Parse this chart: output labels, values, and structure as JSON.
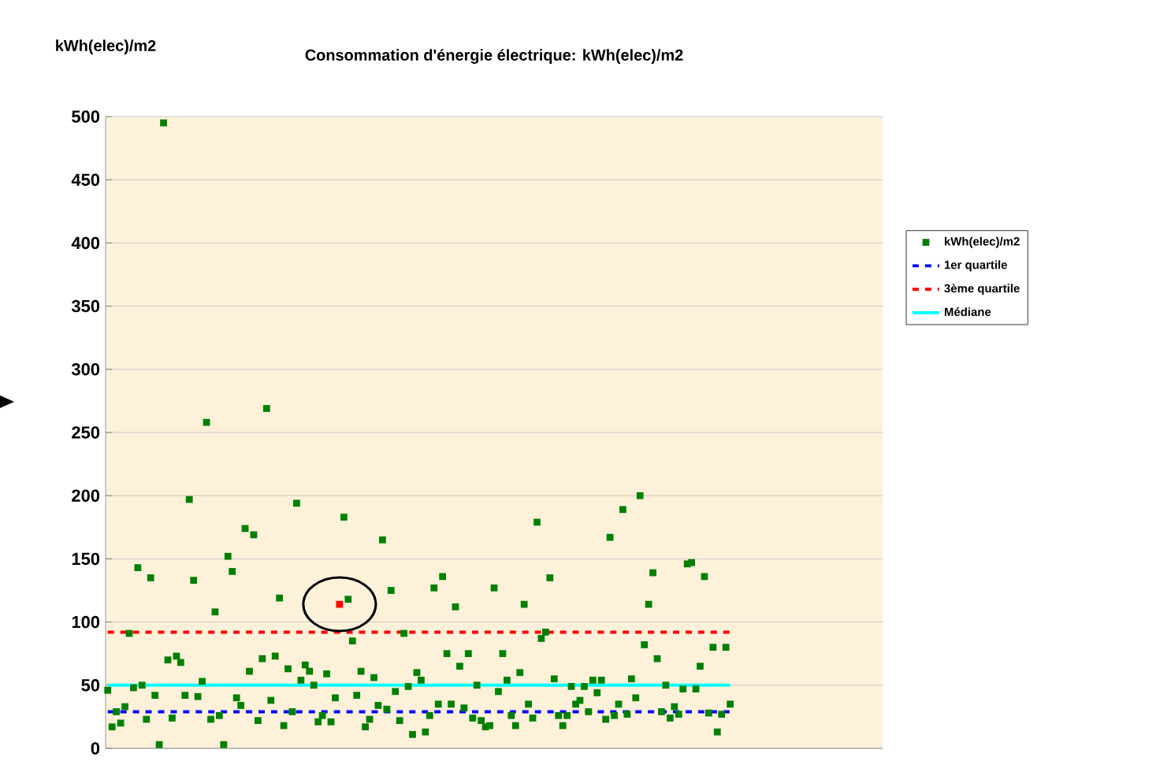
{
  "chart_data": {
    "type": "scatter",
    "title": "Consommation d'énergie électrique: kWh(elec)/m2",
    "ylabel": "kWh(elec)/m2",
    "categories": [
      null,
      null,
      null,
      null,
      null,
      null,
      null,
      null,
      null,
      null,
      null,
      null,
      null,
      null,
      null,
      null,
      null,
      null,
      null,
      null,
      null,
      null,
      null,
      null,
      null,
      null,
      null,
      null,
      null,
      null,
      null,
      null,
      null,
      null,
      null,
      null,
      null,
      null,
      null,
      null,
      null,
      null,
      null,
      null,
      null,
      null,
      null,
      null,
      null,
      null,
      null,
      null,
      null,
      null,
      null,
      null,
      null,
      null,
      null,
      null,
      null,
      null,
      null,
      null,
      null,
      null,
      null,
      null,
      null,
      null,
      null,
      null,
      null,
      null,
      null,
      null,
      null,
      null,
      null,
      null,
      null,
      null,
      null,
      null,
      null,
      null,
      null,
      null,
      null,
      null,
      null,
      null,
      null,
      null,
      null,
      null,
      null,
      null,
      null,
      null,
      null,
      null,
      null,
      null,
      null,
      null,
      null,
      null,
      null,
      null,
      null,
      null,
      null,
      null,
      null,
      null,
      null,
      null,
      null,
      null,
      null,
      null,
      null,
      null,
      null,
      null,
      null,
      null,
      null,
      null,
      null,
      null,
      null,
      null,
      null,
      null,
      null,
      null,
      null,
      null,
      null,
      null,
      null,
      null,
      null,
      null,
      null,
      null,
      null,
      null,
      null,
      null,
      null,
      null,
      null,
      null,
      null,
      null,
      null,
      null,
      null,
      null,
      null,
      null,
      null,
      null,
      null,
      null,
      null,
      null,
      null,
      null,
      null,
      null,
      null,
      null,
      null,
      null,
      null,
      null,
      null
    ],
    "ylim": [
      0,
      500
    ],
    "yticks": [
      0,
      50,
      100,
      150,
      200,
      250,
      300,
      350,
      400,
      450,
      500
    ],
    "grid": "y",
    "legend": "right",
    "tick_labels": "y",
    "marker": "square",
    "series": [
      {
        "name": "kWh(elec)/m2",
        "colors": [
          "#008000",
          "#008000",
          "#008000",
          "#008000",
          "#008000",
          "#008000",
          "#008000",
          "#008000",
          "#008000",
          "#008000",
          "#008000",
          "#008000",
          "#008000",
          "#008000",
          "#008000",
          "#008000",
          "#008000",
          "#008000",
          "#008000",
          "#008000",
          "#008000",
          "#008000",
          "#008000",
          "#008000",
          "#008000",
          "#008000",
          "#008000",
          "#008000",
          "#008000",
          "#008000",
          "#008000",
          "#008000",
          "#008000",
          "#008000",
          "#008000",
          "#008000",
          "#008000",
          "#008000",
          "#008000",
          "#008000",
          "#008000",
          "#008000",
          "#008000",
          "#008000",
          "#008000",
          "#008000",
          "#008000",
          "#008000",
          "#008000",
          "#008000",
          "#008000",
          "#008000",
          "#008000",
          "#008000",
          "#ff0000",
          "#008000",
          "#008000",
          "#008000",
          "#008000",
          "#008000",
          "#008000",
          "#008000",
          "#008000",
          "#008000",
          "#008000",
          "#008000",
          "#008000",
          "#008000",
          "#008000",
          "#008000",
          "#008000",
          "#008000",
          "#008000",
          "#008000",
          "#008000",
          "#008000",
          "#008000",
          "#008000",
          "#008000",
          "#008000",
          "#008000",
          "#008000",
          "#008000",
          "#008000",
          "#008000",
          "#008000",
          "#008000",
          "#008000",
          "#008000",
          "#008000",
          "#008000",
          "#008000",
          "#008000",
          "#008000",
          "#008000",
          "#008000",
          "#008000",
          "#008000",
          "#008000",
          "#008000",
          "#008000",
          "#008000",
          "#008000",
          "#008000",
          "#008000",
          "#008000",
          "#008000",
          "#008000",
          "#008000",
          "#008000",
          "#008000",
          "#008000",
          "#008000",
          "#008000",
          "#008000",
          "#008000",
          "#008000",
          "#008000",
          "#008000",
          "#008000",
          "#008000",
          "#008000",
          "#008000",
          "#008000",
          "#008000",
          "#008000",
          "#008000",
          "#008000",
          "#008000",
          "#008000",
          "#008000",
          "#008000",
          "#008000",
          "#008000",
          "#008000",
          "#008000",
          "#008000",
          "#008000",
          "#008000",
          "#008000",
          "#008000",
          "#008000",
          "#008000",
          "#008000",
          "#008000",
          "#008000",
          "#008000",
          "#008000",
          "#008000",
          "#008000",
          "#008000",
          "#008000",
          "#008000",
          "#008000",
          "#008000",
          "#008000",
          "#008000",
          "#008000",
          "#008000",
          "#008000",
          "#008000",
          "#008000",
          "#008000",
          "#008000",
          "#008000",
          "#008000",
          "#008000",
          "#008000",
          "#008000",
          "#008000",
          "#008000",
          "#008000",
          "#008000",
          "#008000",
          "#008000",
          "#008000",
          "#008000",
          "#008000",
          "#008000",
          "#008000",
          "#008000"
        ],
        "values": [
          46,
          17,
          29,
          20,
          33,
          91,
          48,
          143,
          50,
          23,
          135,
          42,
          3,
          495,
          70,
          24,
          73,
          68,
          42,
          197,
          133,
          41,
          53,
          258,
          23,
          108,
          26,
          3,
          152,
          140,
          40,
          34,
          174,
          61,
          169,
          22,
          71,
          269,
          38,
          73,
          119,
          18,
          63,
          29,
          194,
          54,
          66,
          61,
          50,
          21,
          26,
          59,
          21,
          40,
          114,
          183,
          118,
          85,
          42,
          61,
          17,
          23,
          56,
          34,
          165,
          31,
          125,
          45,
          22,
          91,
          49,
          11,
          60,
          54,
          13,
          26,
          127,
          35,
          136,
          75,
          35,
          112,
          65,
          32,
          75,
          24,
          50,
          22,
          17,
          18,
          127,
          45,
          75,
          54,
          26,
          18,
          60,
          114,
          35,
          24,
          179,
          87,
          92,
          135,
          55,
          26,
          18,
          26,
          49,
          35,
          38,
          49,
          29,
          54,
          44,
          54,
          23,
          167,
          26,
          35,
          189,
          27,
          55,
          40,
          200,
          82,
          114,
          139,
          71,
          29,
          50,
          24,
          33,
          27,
          47,
          146,
          147,
          47,
          65,
          136,
          28,
          80,
          13,
          27,
          80,
          35,
          null,
          null,
          null,
          null,
          null,
          null,
          null,
          null,
          null,
          null,
          null,
          null,
          null,
          null,
          null,
          null,
          null,
          null,
          null,
          null,
          null,
          null,
          null,
          null,
          null,
          null,
          null,
          null,
          null,
          null,
          null,
          null,
          null,
          null,
          null
        ]
      }
    ],
    "ref_lines": [
      {
        "axis": "y",
        "value": 29,
        "label": "1er quartile",
        "color": "#0000ff",
        "line_style": "dashed"
      },
      {
        "axis": "y",
        "value": 92,
        "label": "3ème quartile",
        "color": "#ff0000",
        "line_style": "dashed"
      },
      {
        "axis": "y",
        "value": 50,
        "label": "Médiane",
        "color": "#00ffff",
        "line_style": "solid"
      }
    ]
  }
}
